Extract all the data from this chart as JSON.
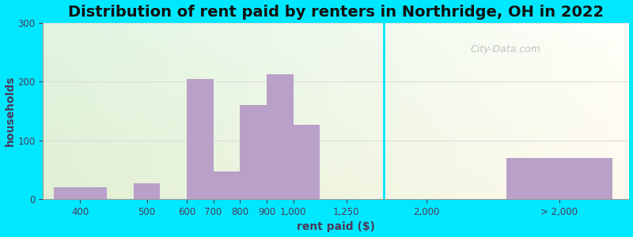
{
  "title": "Distribution of rent paid by renters in Northridge, OH in 2022",
  "xlabel": "rent paid ($)",
  "ylabel": "households",
  "bar_color": "#b8a0c8",
  "background_outer": "#00e8ff",
  "ylim": [
    0,
    300
  ],
  "yticks": [
    0,
    100,
    200,
    300
  ],
  "bar_lefts": [
    0.0,
    1.5,
    2.5,
    3.0,
    3.5,
    4.0,
    4.5,
    5.0,
    8.5
  ],
  "bar_widths": [
    1.0,
    0.5,
    0.5,
    0.5,
    0.5,
    0.5,
    0.5,
    1.0,
    2.0
  ],
  "bar_heights": [
    20,
    27,
    205,
    47,
    160,
    213,
    127,
    0,
    70
  ],
  "xtick_positions": [
    0.5,
    1.75,
    2.5,
    3.0,
    3.5,
    4.0,
    4.5,
    5.5,
    7.0,
    9.5
  ],
  "xtick_labels": [
    "400",
    "500",
    "600",
    "700",
    "800",
    "900",
    "1,000",
    "1,250",
    "2,000",
    "> 2,000"
  ],
  "xlim": [
    -0.2,
    10.8
  ],
  "watermark": "City-Data.com",
  "title_fontsize": 14,
  "axis_label_fontsize": 10,
  "tick_fontsize": 8.5
}
